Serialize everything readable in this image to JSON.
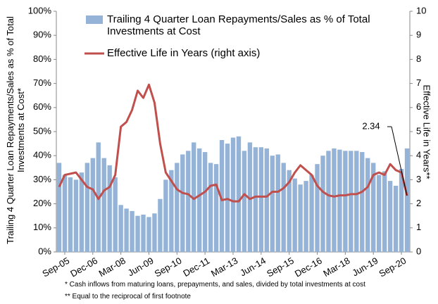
{
  "chart_data": {
    "type": "bar_line",
    "y_label": "Trailing 4 Quarter Loan Repayments/Sales as % of Total Investments at Cost*",
    "y2_label": "Effective Life in Years**",
    "categories": [
      null,
      "Sep-05",
      null,
      null,
      null,
      null,
      "Dec-06",
      null,
      null,
      null,
      null,
      "Mar-08",
      null,
      null,
      null,
      null,
      "Jun-09",
      null,
      null,
      null,
      null,
      "Sep-10",
      null,
      null,
      null,
      null,
      "Dec-11",
      null,
      null,
      null,
      null,
      "Mar-13",
      null,
      null,
      null,
      null,
      "Jun-14",
      null,
      null,
      null,
      null,
      "Sep-15",
      null,
      null,
      null,
      null,
      "Dec-16",
      null,
      null,
      null,
      null,
      "Mar-18",
      null,
      null,
      null,
      null,
      "Jun-19",
      null,
      null,
      null,
      null,
      "Sep-20",
      null
    ],
    "series": [
      {
        "name": "Trailing 4 Quarter Loan Repayments/Sales as % of Total Investments at Cost",
        "color": "#95b3d7",
        "kind": "bar",
        "values": [
          37,
          32,
          31,
          30,
          33,
          37,
          39,
          45.5,
          39,
          36,
          31,
          19.5,
          18,
          17,
          15,
          15.5,
          14.5,
          16,
          22,
          30,
          34,
          37,
          40.5,
          42,
          45.5,
          43,
          41.5,
          37,
          36.5,
          46.5,
          45,
          47.5,
          48,
          42,
          45.5,
          43.5,
          43.5,
          43,
          40,
          40.5,
          37,
          34,
          30.5,
          28,
          29.5,
          32,
          36.5,
          40,
          42,
          43,
          42.5,
          42,
          42,
          42,
          41.5,
          39,
          37,
          32,
          33.5,
          29.5,
          27.5,
          34.5,
          43
        ]
      },
      {
        "name": "Effective Life in Years (right axis)",
        "color": "#c0504d",
        "kind": "line",
        "axis": "y2",
        "values": [
          2.7,
          3.2,
          3.25,
          3.3,
          3.0,
          2.7,
          2.6,
          2.2,
          2.55,
          2.7,
          3.2,
          5.2,
          5.4,
          5.9,
          6.7,
          6.4,
          6.95,
          6.2,
          4.5,
          3.3,
          2.95,
          2.6,
          2.45,
          2.4,
          2.2,
          2.35,
          2.5,
          2.75,
          2.8,
          2.15,
          2.2,
          2.1,
          2.1,
          2.4,
          2.2,
          2.3,
          2.3,
          2.3,
          2.5,
          2.5,
          2.65,
          2.9,
          3.3,
          3.6,
          3.4,
          3.2,
          2.75,
          2.5,
          2.35,
          2.3,
          2.35,
          2.35,
          2.4,
          2.4,
          2.5,
          2.7,
          3.2,
          3.3,
          3.2,
          3.65,
          3.4,
          3.3,
          2.34
        ]
      }
    ],
    "ylim": [
      0,
      100
    ],
    "yticks": [
      {
        "value": 0,
        "label": "0%"
      },
      {
        "value": 10,
        "label": "10%"
      },
      {
        "value": 20,
        "label": "20%"
      },
      {
        "value": 30,
        "label": "30%"
      },
      {
        "value": 40,
        "label": "40%"
      },
      {
        "value": 50,
        "label": "50%"
      },
      {
        "value": 60,
        "label": "60%"
      },
      {
        "value": 70,
        "label": "70%"
      },
      {
        "value": 80,
        "label": "80%"
      },
      {
        "value": 90,
        "label": "90%"
      },
      {
        "value": 100,
        "label": "100%"
      }
    ],
    "y2lim": [
      0,
      10
    ],
    "y2ticks": [
      0,
      1,
      2,
      3,
      4,
      5,
      6,
      7,
      8,
      9,
      10
    ],
    "annotations": [
      {
        "text": "2.34"
      }
    ],
    "footnotes": [
      "*  Cash inflows from maturing loans, prepayments, and sales, divided by total  investments at cost",
      "** Equal to the reciprocal of  first footnote"
    ]
  }
}
